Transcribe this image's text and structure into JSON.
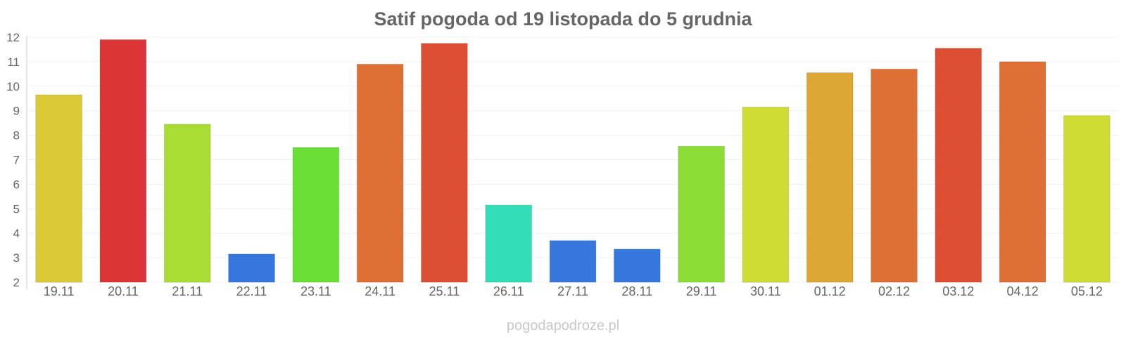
{
  "chart_data": {
    "type": "bar",
    "title": "Satif pogoda od 19 listopada do 5 grudnia",
    "xlabel": "",
    "ylabel": "",
    "ylim": [
      2,
      12
    ],
    "yticks": [
      2,
      3,
      4,
      5,
      6,
      7,
      8,
      9,
      10,
      11,
      12
    ],
    "grid": true,
    "categories": [
      "19.11",
      "20.11",
      "21.11",
      "22.11",
      "23.11",
      "24.11",
      "25.11",
      "26.11",
      "27.11",
      "28.11",
      "29.11",
      "30.11",
      "01.12",
      "02.12",
      "03.12",
      "04.12",
      "05.12"
    ],
    "values": [
      9.65,
      11.9,
      8.45,
      3.15,
      7.5,
      10.9,
      11.75,
      5.15,
      3.7,
      3.35,
      7.55,
      9.15,
      10.55,
      10.7,
      11.55,
      11.0,
      8.8
    ],
    "colors": [
      "#dbc936",
      "#dc3535",
      "#aadd33",
      "#3577dc",
      "#6ade35",
      "#df7035",
      "#dd4f35",
      "#33ddb8",
      "#3577dc",
      "#3577dc",
      "#8bdd35",
      "#cfdc33",
      "#dca735",
      "#df7035",
      "#dd4f35",
      "#df7035",
      "#cfdc33"
    ]
  },
  "credit": "pogodapodroze.pl"
}
